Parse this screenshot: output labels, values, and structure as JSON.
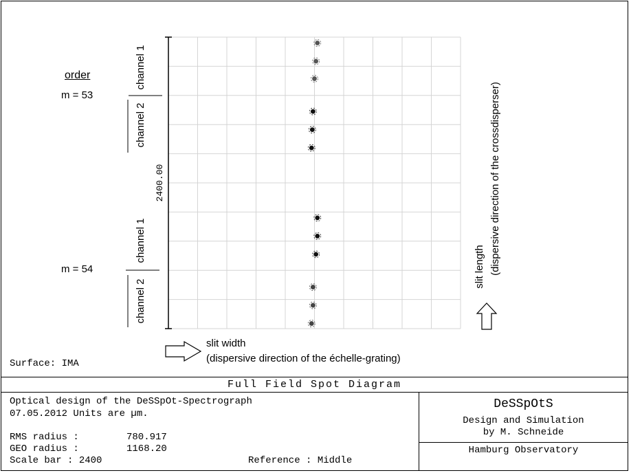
{
  "chart_data": {
    "type": "scatter",
    "title": "Full Field Spot Diagram",
    "grid": true,
    "scale_bar": "2400.00",
    "xlim": [
      -1,
      1
    ],
    "ylim": [
      -1,
      1
    ],
    "series": [
      {
        "name": "m = 53, channel 1",
        "color": "#555555",
        "points": [
          [
            0.02,
            0.96
          ],
          [
            0.01,
            0.835
          ],
          [
            0.0,
            0.715
          ]
        ]
      },
      {
        "name": "m = 53, channel 2",
        "color": "#111111",
        "points": [
          [
            -0.01,
            0.49
          ],
          [
            -0.015,
            0.365
          ],
          [
            -0.02,
            0.24
          ]
        ]
      },
      {
        "name": "m = 54, channel 1",
        "color": "#111111",
        "points": [
          [
            0.02,
            -0.24
          ],
          [
            0.02,
            -0.365
          ],
          [
            0.01,
            -0.49
          ]
        ]
      },
      {
        "name": "m = 54, channel 2",
        "color": "#444444",
        "points": [
          [
            -0.01,
            -0.715
          ],
          [
            -0.01,
            -0.84
          ],
          [
            -0.02,
            -0.965
          ]
        ]
      }
    ]
  },
  "annotations": {
    "order": "order",
    "m53": "m = 53",
    "m54": "m = 54",
    "channel1": "channel 1",
    "channel2": "channel 2",
    "slit_width": "slit width",
    "slit_width_sub": "(dispersive direction of the échelle-grating)",
    "slit_length": "slit length",
    "slit_length_sub": "(dispersive direction of the crossdisperser)",
    "surface": "Surface: IMA"
  },
  "footer": {
    "title": "Full Field Spot Diagram",
    "line1": "Optical design of the DeSSpOt-Spectrograph",
    "line2": "07.05.2012  Units are µm.",
    "rms_label": "RMS radius :",
    "rms_value": "780.917",
    "geo_label": "GEO radius :",
    "geo_value": "1168.20",
    "scale_label": "Scale bar  : 2400",
    "reference": "Reference  : Middle",
    "brand": "DeSSpOtS",
    "brand_line1": "Design and Simulation",
    "brand_line2": "by M. Schneide",
    "observatory": "Hamburg Observatory"
  }
}
